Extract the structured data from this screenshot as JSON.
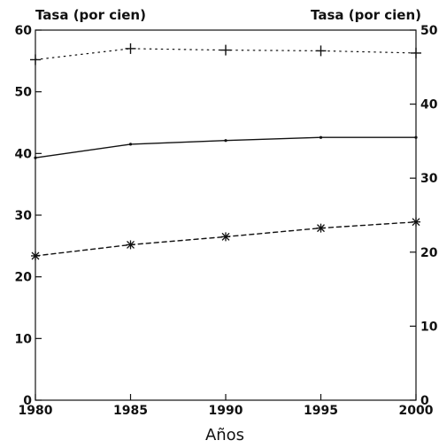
{
  "chart_data": {
    "type": "line",
    "xlabel": "Años",
    "ylabel_left": "Tasa (por cien)",
    "ylabel_right": "Tasa (por cien)",
    "x": [
      1980,
      1985,
      1990,
      1995,
      2000
    ],
    "xticks": [
      "1980",
      "1985",
      "1990",
      "1995",
      "2000"
    ],
    "xlim": [
      1980,
      2000
    ],
    "ylim_left": [
      0,
      60
    ],
    "yticks_left": [
      "0",
      "10",
      "20",
      "30",
      "40",
      "50",
      "60"
    ],
    "ylim_right": [
      0,
      50
    ],
    "yticks_right": [
      "0",
      "10",
      "20",
      "30",
      "40",
      "50"
    ],
    "grid": false,
    "series": [
      {
        "axis": "right",
        "style": "dotted",
        "marker": "plus",
        "values": [
          46,
          47.5,
          47.3,
          47.2,
          46.9
        ]
      },
      {
        "axis": "left",
        "style": "solid",
        "marker": "dot",
        "values": [
          39.3,
          41.5,
          42.1,
          42.6,
          42.6
        ]
      },
      {
        "axis": "left",
        "style": "dashed",
        "marker": "asterisk",
        "values": [
          23.4,
          25.2,
          26.5,
          27.9,
          28.9
        ]
      }
    ],
    "colors": {
      "ink": "#111111",
      "background": "#ffffff"
    }
  }
}
